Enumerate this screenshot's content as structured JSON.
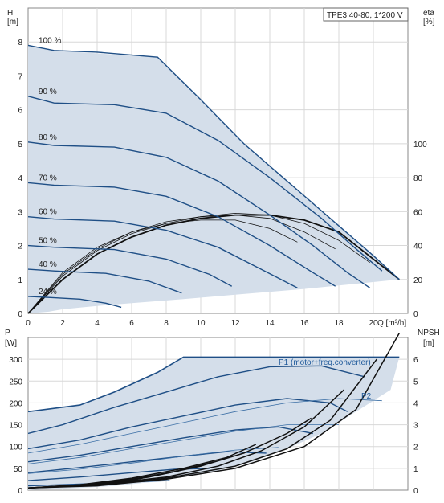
{
  "chart_data": [
    {
      "type": "line",
      "model_label": "TPE3 40-80, 1*200 V",
      "left_axis": {
        "label_top": "H",
        "label_unit": "[m]",
        "ylim": [
          0,
          9
        ],
        "ticks": [
          "0",
          "1",
          "2",
          "3",
          "4",
          "5",
          "6",
          "7",
          "8"
        ]
      },
      "right_axis": {
        "label_top": "eta",
        "label_unit": "[%]",
        "ylim": [
          0,
          180
        ],
        "ticks": [
          "0",
          "20",
          "40",
          "60",
          "80",
          "100"
        ]
      },
      "x_axis": {
        "label": "Q [m³/h]",
        "xlim": [
          0,
          22
        ],
        "ticks": [
          "0",
          "2",
          "4",
          "6",
          "8",
          "10",
          "12",
          "14",
          "16",
          "18",
          "20"
        ]
      },
      "grid": true,
      "speed_curves": [
        {
          "name": "100 %",
          "q": [
            0,
            1.5,
            4,
            7.5,
            10,
            12.5,
            15,
            17.5,
            20,
            21.5
          ],
          "h": [
            7.9,
            7.75,
            7.7,
            7.55,
            6.3,
            5.0,
            3.9,
            2.8,
            1.7,
            1.0
          ]
        },
        {
          "name": "90 %",
          "q": [
            0,
            1.5,
            5,
            8,
            11,
            14,
            17,
            19,
            20.5
          ],
          "h": [
            6.4,
            6.2,
            6.15,
            5.9,
            5.1,
            4.0,
            2.8,
            1.9,
            1.25
          ]
        },
        {
          "name": "80 %",
          "q": [
            0,
            1.5,
            5,
            8,
            11,
            14,
            16.5,
            18.5,
            19.8
          ],
          "h": [
            5.05,
            4.95,
            4.9,
            4.6,
            3.9,
            2.9,
            2.0,
            1.2,
            0.75
          ]
        },
        {
          "name": "70 %",
          "q": [
            0,
            1.5,
            5,
            8,
            11,
            14,
            16.5,
            17.8
          ],
          "h": [
            3.85,
            3.78,
            3.72,
            3.45,
            2.85,
            2.0,
            1.2,
            0.8
          ]
        },
        {
          "name": "60 %",
          "q": [
            0,
            1.5,
            5,
            8,
            11,
            13.5,
            15.6
          ],
          "h": [
            2.85,
            2.78,
            2.72,
            2.45,
            1.95,
            1.3,
            0.75
          ]
        },
        {
          "name": "50 %",
          "q": [
            0,
            1.5,
            5,
            8,
            10.5,
            11.8
          ],
          "h": [
            2.0,
            1.95,
            1.88,
            1.6,
            1.15,
            0.8
          ]
        },
        {
          "name": "40 %",
          "q": [
            0,
            1.5,
            4.5,
            7,
            8.9
          ],
          "h": [
            1.3,
            1.25,
            1.18,
            0.95,
            0.6
          ]
        },
        {
          "name": "24 %",
          "q": [
            0,
            1.2,
            3,
            4.5,
            5.4
          ],
          "h": [
            0.5,
            0.47,
            0.42,
            0.3,
            0.18
          ]
        }
      ],
      "efficiency_curves": [
        {
          "q": [
            0,
            2,
            4,
            6,
            8,
            10,
            12,
            14,
            16,
            18,
            21.5
          ],
          "eta": [
            0,
            20,
            35,
            45,
            52,
            56,
            58,
            58,
            55,
            48,
            20
          ]
        },
        {
          "q": [
            0,
            2,
            4,
            6,
            8,
            10,
            12,
            14,
            16,
            18,
            19.8
          ],
          "eta": [
            0,
            22,
            37,
            47,
            53,
            57,
            59,
            58,
            53,
            43,
            30
          ]
        },
        {
          "q": [
            0,
            2,
            4,
            6,
            8,
            10,
            12,
            14,
            16,
            17.8
          ],
          "eta": [
            0,
            23,
            38,
            48,
            54,
            57,
            58,
            56,
            48,
            38
          ]
        },
        {
          "q": [
            0,
            2,
            4,
            6,
            8,
            10,
            12,
            14,
            15.6
          ],
          "eta": [
            0,
            24,
            39,
            48,
            53,
            55,
            55,
            50,
            42
          ]
        }
      ],
      "operating_range": {
        "q": [
          0,
          1.2,
          1.3,
          7.5,
          10,
          12.5,
          15,
          17.5,
          20,
          21.5,
          21.5,
          16,
          12,
          9,
          6,
          4,
          2,
          1.2,
          0
        ],
        "h": [
          7.9,
          7.8,
          7.75,
          7.55,
          6.3,
          5.0,
          3.9,
          2.8,
          1.7,
          1.0,
          1.0,
          0.72,
          0.55,
          0.42,
          0.3,
          0.22,
          0.12,
          0.05,
          0
        ]
      }
    },
    {
      "type": "line",
      "left_axis": {
        "label_top": "P",
        "label_unit": "[W]",
        "ylim": [
          0,
          350
        ],
        "ticks": [
          "0",
          "50",
          "100",
          "150",
          "200",
          "250",
          "300"
        ]
      },
      "right_axis": {
        "label_top": "NPSH",
        "label_unit": "[m]",
        "ylim": [
          0,
          7
        ],
        "ticks": [
          "0",
          "1",
          "2",
          "3",
          "4",
          "5",
          "6"
        ]
      },
      "x_axis": {
        "xlim": [
          0,
          22
        ]
      },
      "grid": true,
      "series_labels": [
        "P1 (motor+freq.converter)",
        "P2"
      ],
      "p1_curves": [
        {
          "q": [
            0,
            2,
            5,
            8,
            11,
            14,
            17,
            19.5
          ],
          "p": [
            130,
            150,
            190,
            225,
            260,
            283,
            285,
            260
          ]
        },
        {
          "q": [
            0,
            3,
            6,
            9,
            12,
            15,
            17.5,
            18.5
          ],
          "p": [
            95,
            115,
            145,
            170,
            195,
            210,
            200,
            180
          ]
        },
        {
          "q": [
            0,
            3,
            6,
            9,
            12,
            14.5,
            16.5
          ],
          "p": [
            65,
            80,
            100,
            120,
            138,
            145,
            130
          ]
        },
        {
          "q": [
            0,
            3,
            6,
            9,
            11.5,
            13.8
          ],
          "p": [
            40,
            52,
            65,
            78,
            88,
            85
          ]
        },
        {
          "q": [
            0,
            3,
            6,
            8.5,
            10.5
          ],
          "p": [
            22,
            30,
            40,
            48,
            50
          ]
        },
        {
          "q": [
            0,
            3,
            6,
            8.2
          ],
          "p": [
            10,
            14,
            19,
            22
          ]
        }
      ],
      "p2_curves": [
        {
          "q": [
            0,
            3,
            6,
            9,
            12,
            15,
            18,
            20.5
          ],
          "p": [
            85,
            105,
            130,
            155,
            180,
            200,
            210,
            205
          ]
        },
        {
          "q": [
            0,
            3,
            6,
            9,
            12,
            15,
            18
          ],
          "p": [
            60,
            75,
            95,
            115,
            135,
            150,
            150
          ]
        },
        {
          "q": [
            0,
            3,
            6,
            9,
            12,
            14.5
          ],
          "p": [
            38,
            48,
            62,
            78,
            92,
            98
          ]
        }
      ],
      "npsh_curves": [
        {
          "q": [
            0,
            4,
            8,
            12,
            16,
            19,
            21.5
          ],
          "npsh": [
            0.1,
            0.2,
            0.5,
            1.0,
            2.0,
            3.7,
            7.2
          ]
        },
        {
          "q": [
            0,
            4,
            8,
            12,
            15,
            17.5,
            20.2
          ],
          "npsh": [
            0.1,
            0.22,
            0.55,
            1.1,
            1.9,
            3.2,
            6.0
          ]
        },
        {
          "q": [
            0,
            4,
            8,
            11,
            13.5,
            16,
            18.3
          ],
          "npsh": [
            0.1,
            0.25,
            0.6,
            1.1,
            1.8,
            2.9,
            4.6
          ]
        },
        {
          "q": [
            0,
            4,
            7,
            10,
            12.5,
            15,
            16.4
          ],
          "npsh": [
            0.1,
            0.28,
            0.6,
            1.1,
            1.7,
            2.6,
            3.3
          ]
        },
        {
          "q": [
            0,
            3,
            6,
            9,
            11.5,
            13.2
          ],
          "npsh": [
            0.1,
            0.25,
            0.55,
            1.0,
            1.5,
            2.1
          ]
        },
        {
          "q": [
            0,
            3,
            6,
            8.5,
            10.8
          ],
          "npsh": [
            0.1,
            0.25,
            0.5,
            0.85,
            1.3
          ]
        },
        {
          "q": [
            0,
            3,
            6,
            8.8
          ],
          "npsh": [
            0.1,
            0.22,
            0.45,
            0.9
          ]
        }
      ],
      "operating_range": {
        "q": [
          0,
          3,
          5,
          7.5,
          9,
          12,
          15,
          18,
          20,
          21.5,
          21,
          19,
          17,
          15,
          13,
          11,
          9,
          7,
          5,
          3,
          1,
          0
        ],
        "p": [
          180,
          195,
          225,
          270,
          305,
          305,
          305,
          305,
          305,
          305,
          230,
          180,
          130,
          95,
          65,
          45,
          30,
          18,
          10,
          5,
          2,
          0
        ]
      }
    }
  ]
}
